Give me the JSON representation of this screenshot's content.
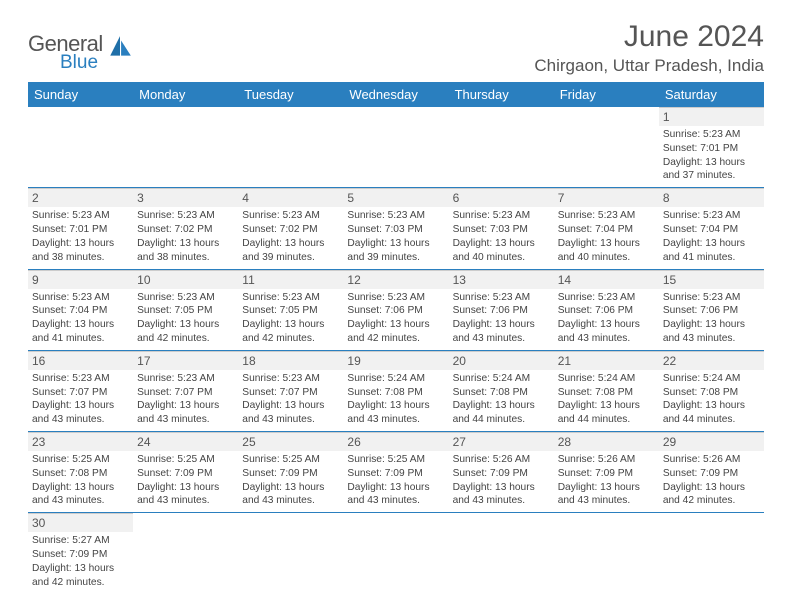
{
  "logo": {
    "line1": "General",
    "line2": "Blue"
  },
  "title": "June 2024",
  "location": "Chirgaon, Uttar Pradesh, India",
  "colors": {
    "brand": "#2a7fbf",
    "header_bg": "#2a7fbf",
    "text": "#555",
    "cell_text": "#444",
    "daynum_bg": "#f1f1f1"
  },
  "day_headers": [
    "Sunday",
    "Monday",
    "Tuesday",
    "Wednesday",
    "Thursday",
    "Friday",
    "Saturday"
  ],
  "weeks": [
    [
      null,
      null,
      null,
      null,
      null,
      null,
      {
        "n": "1",
        "sr": "5:23 AM",
        "ss": "7:01 PM",
        "dl": "13 hours and 37 minutes."
      }
    ],
    [
      {
        "n": "2",
        "sr": "5:23 AM",
        "ss": "7:01 PM",
        "dl": "13 hours and 38 minutes."
      },
      {
        "n": "3",
        "sr": "5:23 AM",
        "ss": "7:02 PM",
        "dl": "13 hours and 38 minutes."
      },
      {
        "n": "4",
        "sr": "5:23 AM",
        "ss": "7:02 PM",
        "dl": "13 hours and 39 minutes."
      },
      {
        "n": "5",
        "sr": "5:23 AM",
        "ss": "7:03 PM",
        "dl": "13 hours and 39 minutes."
      },
      {
        "n": "6",
        "sr": "5:23 AM",
        "ss": "7:03 PM",
        "dl": "13 hours and 40 minutes."
      },
      {
        "n": "7",
        "sr": "5:23 AM",
        "ss": "7:04 PM",
        "dl": "13 hours and 40 minutes."
      },
      {
        "n": "8",
        "sr": "5:23 AM",
        "ss": "7:04 PM",
        "dl": "13 hours and 41 minutes."
      }
    ],
    [
      {
        "n": "9",
        "sr": "5:23 AM",
        "ss": "7:04 PM",
        "dl": "13 hours and 41 minutes."
      },
      {
        "n": "10",
        "sr": "5:23 AM",
        "ss": "7:05 PM",
        "dl": "13 hours and 42 minutes."
      },
      {
        "n": "11",
        "sr": "5:23 AM",
        "ss": "7:05 PM",
        "dl": "13 hours and 42 minutes."
      },
      {
        "n": "12",
        "sr": "5:23 AM",
        "ss": "7:06 PM",
        "dl": "13 hours and 42 minutes."
      },
      {
        "n": "13",
        "sr": "5:23 AM",
        "ss": "7:06 PM",
        "dl": "13 hours and 43 minutes."
      },
      {
        "n": "14",
        "sr": "5:23 AM",
        "ss": "7:06 PM",
        "dl": "13 hours and 43 minutes."
      },
      {
        "n": "15",
        "sr": "5:23 AM",
        "ss": "7:06 PM",
        "dl": "13 hours and 43 minutes."
      }
    ],
    [
      {
        "n": "16",
        "sr": "5:23 AM",
        "ss": "7:07 PM",
        "dl": "13 hours and 43 minutes."
      },
      {
        "n": "17",
        "sr": "5:23 AM",
        "ss": "7:07 PM",
        "dl": "13 hours and 43 minutes."
      },
      {
        "n": "18",
        "sr": "5:23 AM",
        "ss": "7:07 PM",
        "dl": "13 hours and 43 minutes."
      },
      {
        "n": "19",
        "sr": "5:24 AM",
        "ss": "7:08 PM",
        "dl": "13 hours and 43 minutes."
      },
      {
        "n": "20",
        "sr": "5:24 AM",
        "ss": "7:08 PM",
        "dl": "13 hours and 44 minutes."
      },
      {
        "n": "21",
        "sr": "5:24 AM",
        "ss": "7:08 PM",
        "dl": "13 hours and 44 minutes."
      },
      {
        "n": "22",
        "sr": "5:24 AM",
        "ss": "7:08 PM",
        "dl": "13 hours and 44 minutes."
      }
    ],
    [
      {
        "n": "23",
        "sr": "5:25 AM",
        "ss": "7:08 PM",
        "dl": "13 hours and 43 minutes."
      },
      {
        "n": "24",
        "sr": "5:25 AM",
        "ss": "7:09 PM",
        "dl": "13 hours and 43 minutes."
      },
      {
        "n": "25",
        "sr": "5:25 AM",
        "ss": "7:09 PM",
        "dl": "13 hours and 43 minutes."
      },
      {
        "n": "26",
        "sr": "5:25 AM",
        "ss": "7:09 PM",
        "dl": "13 hours and 43 minutes."
      },
      {
        "n": "27",
        "sr": "5:26 AM",
        "ss": "7:09 PM",
        "dl": "13 hours and 43 minutes."
      },
      {
        "n": "28",
        "sr": "5:26 AM",
        "ss": "7:09 PM",
        "dl": "13 hours and 43 minutes."
      },
      {
        "n": "29",
        "sr": "5:26 AM",
        "ss": "7:09 PM",
        "dl": "13 hours and 42 minutes."
      }
    ],
    [
      {
        "n": "30",
        "sr": "5:27 AM",
        "ss": "7:09 PM",
        "dl": "13 hours and 42 minutes."
      },
      null,
      null,
      null,
      null,
      null,
      null
    ]
  ],
  "labels": {
    "sunrise_prefix": "Sunrise: ",
    "sunset_prefix": "Sunset: ",
    "daylight_prefix": "Daylight: "
  }
}
